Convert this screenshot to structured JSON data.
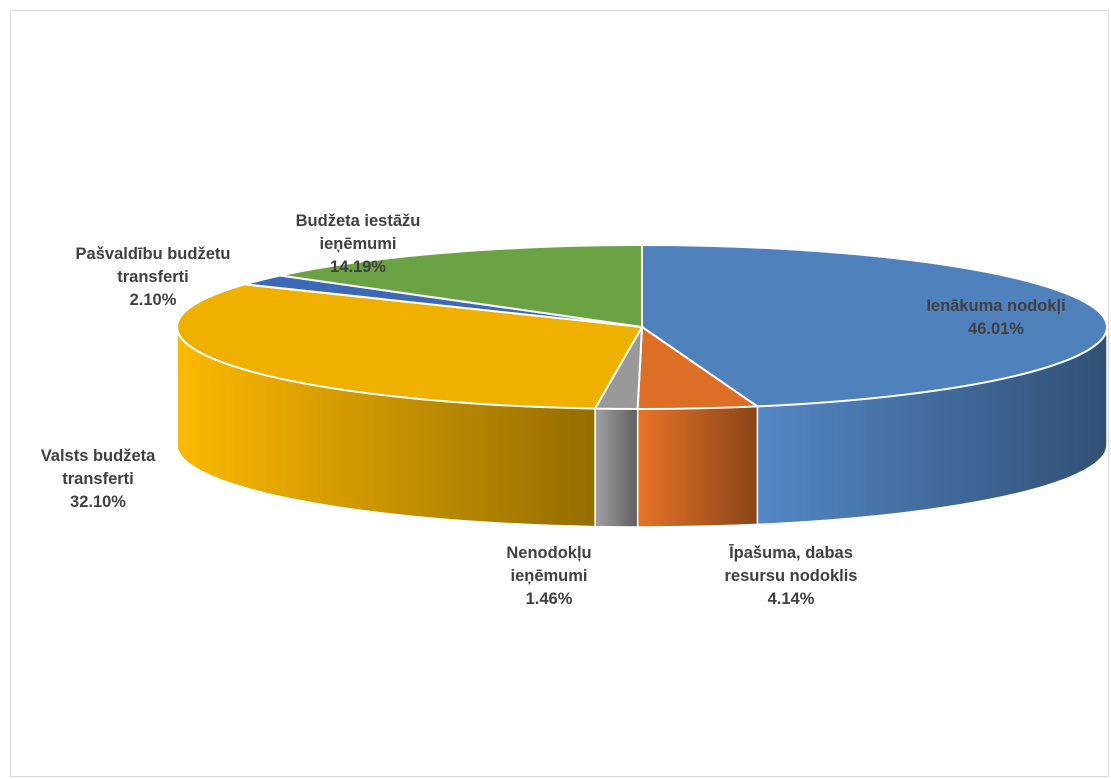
{
  "chart_data": {
    "type": "pie",
    "style": "3d",
    "title": "",
    "legend": "none",
    "slices": [
      {
        "label_lines": [
          "Ienākuma nodokļi"
        ],
        "value": 46.01,
        "value_text": "46.01%",
        "color": "#4f81bd"
      },
      {
        "label_lines": [
          "Īpašuma, dabas",
          "resursu nodoklis"
        ],
        "value": 4.14,
        "value_text": "4.14%",
        "color": "#dd6e25"
      },
      {
        "label_lines": [
          "Nenodokļu",
          "ieņēmumi"
        ],
        "value": 1.46,
        "value_text": "1.46%",
        "color": "#999999"
      },
      {
        "label_lines": [
          "Valsts budžeta",
          "transferti"
        ],
        "value": 32.1,
        "value_text": "32.10%",
        "color": "#f0b000"
      },
      {
        "label_lines": [
          "Pašvaldību budžetu",
          "transferti"
        ],
        "value": 2.1,
        "value_text": "2.10%",
        "color": "#3c68b5"
      },
      {
        "label_lines": [
          "Budžeta iestāžu",
          "ieņēmumi"
        ],
        "value": 14.19,
        "value_text": "14.19%",
        "color": "#6aa244"
      }
    ]
  }
}
